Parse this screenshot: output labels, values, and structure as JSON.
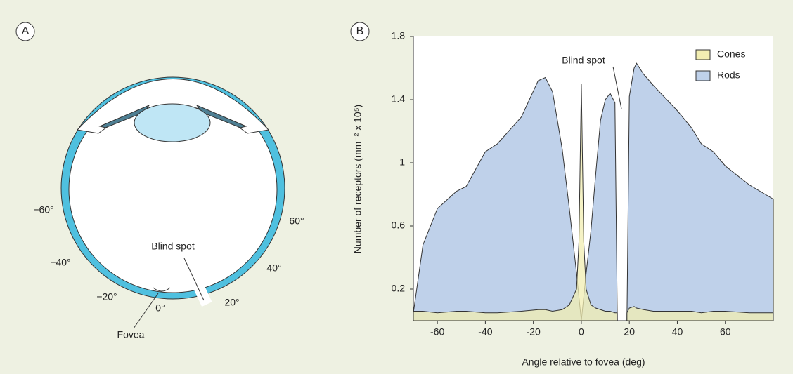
{
  "panel_a": {
    "label": "A",
    "angle_labels": [
      "−60°",
      "60°",
      "−40°",
      "40°",
      "−20°",
      "20°",
      "0°"
    ],
    "blind_spot": "Blind spot",
    "fovea": "Fovea"
  },
  "chart_data": {
    "type": "area",
    "panel_label": "B",
    "x_label": "Angle relative to fovea (deg)",
    "y_label": "Number of receptors (mm⁻² x 10⁵)",
    "annotation": "Blind spot",
    "x": [
      -70,
      -66,
      -60,
      -52,
      -48,
      -40,
      -35,
      -25,
      -18,
      -15,
      -12,
      -8,
      -5,
      -2,
      -1,
      0,
      1,
      2,
      4,
      6,
      8,
      10,
      12,
      14,
      15,
      16,
      19,
      20,
      22,
      23,
      26,
      30,
      40,
      46,
      50,
      55,
      60,
      70,
      80
    ],
    "series": [
      {
        "name": "Rods",
        "color": "#bfd1ea",
        "values": [
          0.05,
          0.48,
          0.71,
          0.82,
          0.85,
          1.07,
          1.12,
          1.29,
          1.52,
          1.54,
          1.45,
          1.09,
          0.71,
          0.3,
          0.15,
          0,
          0.15,
          0.3,
          0.57,
          0.93,
          1.27,
          1.4,
          1.44,
          1.38,
          0,
          null,
          0,
          1.42,
          1.6,
          1.63,
          1.56,
          1.49,
          1.33,
          1.22,
          1.12,
          1.07,
          0.98,
          0.86,
          0.77
        ]
      },
      {
        "name": "Cones",
        "color": "#f2eeb2",
        "values": [
          0.06,
          0.06,
          0.05,
          0.06,
          0.06,
          0.05,
          0.05,
          0.06,
          0.07,
          0.07,
          0.06,
          0.07,
          0.1,
          0.2,
          0.5,
          1.5,
          0.5,
          0.2,
          0.1,
          0.08,
          0.07,
          0.06,
          0.06,
          0.05,
          0.05,
          null,
          0.05,
          0.08,
          0.09,
          0.08,
          0.07,
          0.06,
          0.06,
          0.06,
          0.05,
          0.06,
          0.06,
          0.05,
          0.05
        ]
      }
    ],
    "xlim": [
      -70,
      80
    ],
    "xticks": [
      -60,
      -40,
      -20,
      0,
      20,
      40,
      60
    ],
    "ylim": [
      0,
      1.8
    ],
    "yticks": [
      0.2,
      0.6,
      1.0,
      1.4,
      1.8
    ],
    "legend": "top-right"
  }
}
